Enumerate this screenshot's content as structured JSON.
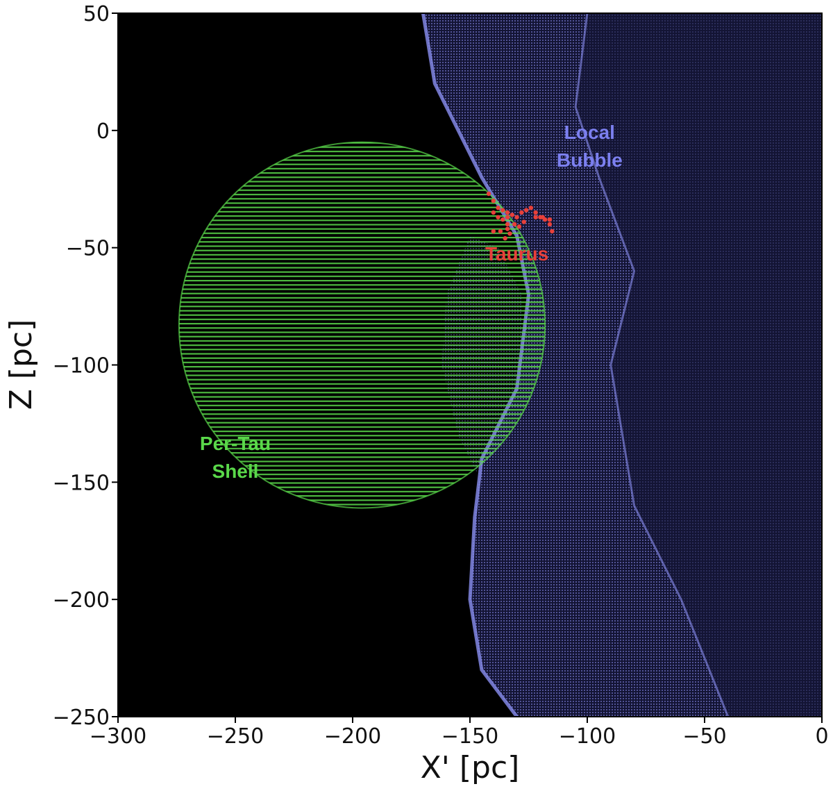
{
  "chart_data": {
    "type": "scatter",
    "xlabel": "X' [pc]",
    "ylabel": "Z [pc]",
    "xlim": [
      -300,
      0
    ],
    "ylim": [
      -250,
      50
    ],
    "xticks": [
      -300,
      -250,
      -200,
      -150,
      -100,
      -50,
      0
    ],
    "yticks": [
      -250,
      -200,
      -150,
      -100,
      -50,
      0,
      50
    ],
    "xtick_labels": [
      "−300",
      "−250",
      "−200",
      "−150",
      "−100",
      "−50",
      "0"
    ],
    "ytick_labels": [
      "−250",
      "−200",
      "−150",
      "−100",
      "−50",
      "0",
      "50"
    ],
    "background": "#000000",
    "series": [
      {
        "name": "Per-Tau Shell",
        "color": "#5ad84a",
        "shape": "sphere",
        "center": [
          -196,
          -83
        ],
        "radius": 78
      },
      {
        "name": "Local Bubble",
        "color": "#8a8ef0",
        "shape": "surface",
        "left_edge": [
          [
            -170,
            50
          ],
          [
            -165,
            20
          ],
          [
            -155,
            0
          ],
          [
            -145,
            -20
          ],
          [
            -130,
            -45
          ],
          [
            -125,
            -70
          ],
          [
            -130,
            -110
          ],
          [
            -145,
            -140
          ],
          [
            -148,
            -165
          ],
          [
            -150,
            -200
          ],
          [
            -145,
            -230
          ],
          [
            -130,
            -250
          ]
        ],
        "right_edge": [
          [
            -100,
            50
          ],
          [
            -105,
            10
          ],
          [
            -95,
            -20
          ],
          [
            -80,
            -60
          ],
          [
            -90,
            -100
          ],
          [
            -80,
            -160
          ],
          [
            -60,
            -200
          ],
          [
            -40,
            -250
          ]
        ]
      },
      {
        "name": "Taurus",
        "color": "#e8403a",
        "shape": "filaments",
        "points": [
          [
            -142,
            -27
          ],
          [
            -140,
            -30
          ],
          [
            -138,
            -33
          ],
          [
            -136,
            -34
          ],
          [
            -134,
            -35
          ],
          [
            -132,
            -36
          ],
          [
            -130,
            -37
          ],
          [
            -128,
            -35
          ],
          [
            -126,
            -34
          ],
          [
            -124,
            -33
          ],
          [
            -122,
            -35
          ],
          [
            -120,
            -37
          ],
          [
            -118,
            -38
          ],
          [
            -116,
            -40
          ],
          [
            -115,
            -43
          ],
          [
            -116,
            -38
          ],
          [
            -119,
            -37
          ],
          [
            -122,
            -37
          ],
          [
            -127,
            -39
          ],
          [
            -129,
            -41
          ],
          [
            -131,
            -40
          ],
          [
            -134,
            -42
          ],
          [
            -137,
            -43
          ],
          [
            -140,
            -43
          ],
          [
            -134,
            -37
          ],
          [
            -134,
            -40
          ],
          [
            -133,
            -44
          ],
          [
            -135,
            -46
          ],
          [
            -140,
            -35
          ],
          [
            -138,
            -37
          ],
          [
            -136,
            -38
          ]
        ]
      }
    ],
    "annotations": [
      {
        "text_lines": [
          "Local",
          "Bubble"
        ],
        "x": -99,
        "color": "#7c80f0"
      },
      {
        "text_lines": [
          "Taurus"
        ],
        "x": -130,
        "color": "#e8403a"
      },
      {
        "text_lines": [
          "Per-Tau",
          "Shell"
        ],
        "x": -250,
        "color": "#5ad84a"
      }
    ]
  }
}
